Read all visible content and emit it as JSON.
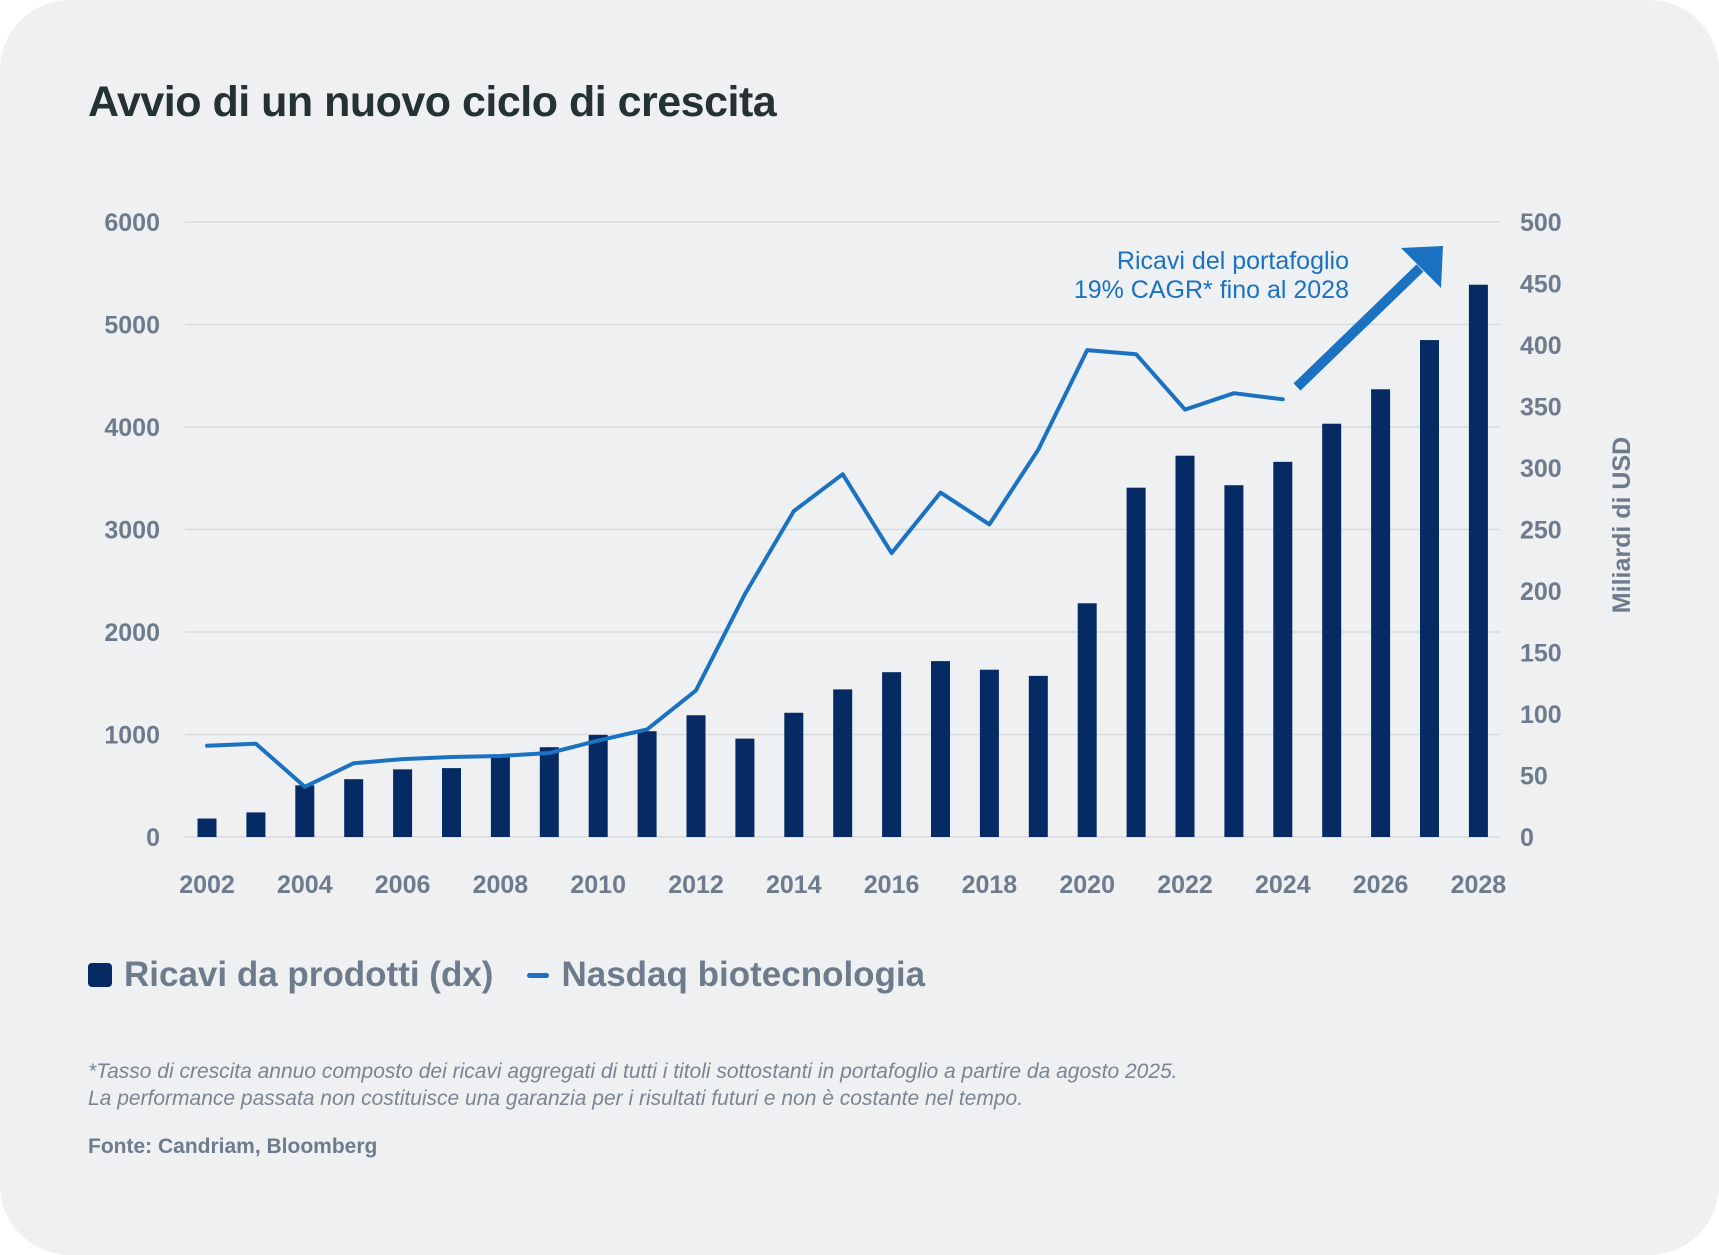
{
  "title": "Avvio di un nuovo ciclo di crescita",
  "legend": {
    "bars_label": "Ricavi da prodotti (dx)",
    "line_label": "Nasdaq biotecnologia"
  },
  "annotation": {
    "line1": "Ricavi del portafoglio",
    "line2": "19% CAGR* fino al 2028"
  },
  "footnote": {
    "line1": "*Tasso di crescita annuo composto dei ricavi aggregati di tutti i titoli sottostanti in portafoglio a partire da agosto 2025.",
    "line2": "La performance passata non costituisce una garanzia per i risultati futuri e non è costante nel tempo."
  },
  "source": "Fonte: Candriam, Bloomberg",
  "colors": {
    "bars": "#062a63",
    "line": "#1a72c0",
    "annotation": "#1a72c0",
    "grid": "#d6d9de",
    "ticks": "#6e7b8d"
  },
  "chart_data": {
    "type": "bar",
    "title": "Avvio di un nuovo ciclo di crescita",
    "xlabel": "",
    "ylabel_left": "",
    "ylabel_right": "Miliardi di USD",
    "x_tick_labels": [
      "2002",
      "2004",
      "2006",
      "2008",
      "2010",
      "2012",
      "2014",
      "2016",
      "2018",
      "2020",
      "2022",
      "2024",
      "2026",
      "2028"
    ],
    "y_left_ticks": [
      0,
      1000,
      2000,
      3000,
      4000,
      5000,
      6000
    ],
    "y_right_ticks": [
      0,
      50,
      100,
      150,
      200,
      250,
      300,
      350,
      400,
      450,
      500
    ],
    "ylim_left": [
      0,
      6000
    ],
    "ylim_right": [
      0,
      500
    ],
    "grid": true,
    "legend_position": "bottom-left",
    "categories": [
      2002,
      2003,
      2004,
      2005,
      2006,
      2007,
      2008,
      2009,
      2010,
      2011,
      2012,
      2013,
      2014,
      2015,
      2016,
      2017,
      2018,
      2019,
      2020,
      2021,
      2022,
      2023,
      2024,
      2025,
      2026,
      2027,
      2028
    ],
    "series": [
      {
        "name": "Ricavi da prodotti (dx)",
        "type": "bar",
        "axis": "right",
        "values": [
          15,
          20,
          42,
          47,
          55,
          56,
          66,
          73,
          83,
          86,
          99,
          80,
          101,
          120,
          134,
          143,
          136,
          131,
          190,
          284,
          310,
          286,
          305,
          336,
          364,
          404,
          449
        ]
      },
      {
        "name": "Nasdaq biotecnologia",
        "type": "line",
        "axis": "left",
        "x": [
          2002,
          2003,
          2004,
          2005,
          2006,
          2007,
          2008,
          2009,
          2010,
          2011,
          2012,
          2013,
          2014,
          2015,
          2016,
          2017,
          2018,
          2019,
          2020,
          2021,
          2022,
          2023,
          2024
        ],
        "values": [
          890,
          910,
          490,
          720,
          760,
          780,
          790,
          820,
          940,
          1050,
          1430,
          2370,
          3180,
          3540,
          2770,
          3360,
          3050,
          3780,
          4750,
          4710,
          4170,
          4330,
          4270
        ]
      }
    ]
  }
}
